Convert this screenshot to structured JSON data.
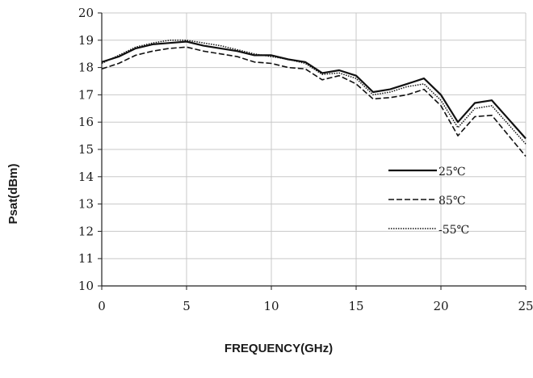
{
  "chart_data": {
    "type": "line",
    "title": "",
    "xlabel": "FREQUENCY(GHz)",
    "ylabel": "Psat(dBm)",
    "xlim": [
      0,
      25
    ],
    "ylim": [
      10,
      20
    ],
    "x_ticks": [
      "0",
      "5",
      "10",
      "15",
      "20",
      "25"
    ],
    "y_ticks": [
      "10",
      "11",
      "12",
      "13",
      "14",
      "15",
      "16",
      "17",
      "18",
      "19",
      "20"
    ],
    "grid": true,
    "legend_position": "lower-right",
    "series": [
      {
        "name": "25℃",
        "line_style": "solid",
        "color": "#111111",
        "x": [
          0,
          1,
          2,
          3,
          4,
          5,
          6,
          7,
          8,
          9,
          10,
          11,
          12,
          13,
          14,
          15,
          16,
          17,
          18,
          19,
          20,
          21,
          22,
          23,
          24,
          25
        ],
        "y": [
          18.2,
          18.4,
          18.7,
          18.85,
          18.9,
          18.95,
          18.8,
          18.7,
          18.6,
          18.45,
          18.45,
          18.3,
          18.2,
          17.8,
          17.9,
          17.7,
          17.1,
          17.2,
          17.4,
          17.6,
          17.0,
          16.0,
          16.7,
          16.8,
          16.1,
          15.4
        ]
      },
      {
        "name": "85℃",
        "line_style": "dashed",
        "color": "#111111",
        "x": [
          0,
          1,
          2,
          3,
          4,
          5,
          6,
          7,
          8,
          9,
          10,
          11,
          12,
          13,
          14,
          15,
          16,
          17,
          18,
          19,
          20,
          21,
          22,
          23,
          24,
          25
        ],
        "y": [
          17.95,
          18.15,
          18.45,
          18.6,
          18.7,
          18.75,
          18.6,
          18.5,
          18.4,
          18.2,
          18.15,
          18.0,
          17.95,
          17.55,
          17.7,
          17.4,
          16.85,
          16.9,
          17.0,
          17.2,
          16.6,
          15.5,
          16.2,
          16.25,
          15.5,
          14.75
        ]
      },
      {
        "name": "-55℃",
        "line_style": "dotted",
        "color": "#111111",
        "x": [
          0,
          1,
          2,
          3,
          4,
          5,
          6,
          7,
          8,
          9,
          10,
          11,
          12,
          13,
          14,
          15,
          16,
          17,
          18,
          19,
          20,
          21,
          22,
          23,
          24,
          25
        ],
        "y": [
          18.15,
          18.45,
          18.75,
          18.9,
          19.0,
          19.0,
          18.9,
          18.8,
          18.65,
          18.5,
          18.4,
          18.3,
          18.15,
          17.75,
          17.8,
          17.6,
          17.0,
          17.1,
          17.3,
          17.4,
          16.8,
          15.8,
          16.5,
          16.6,
          15.9,
          15.2
        ]
      }
    ]
  }
}
